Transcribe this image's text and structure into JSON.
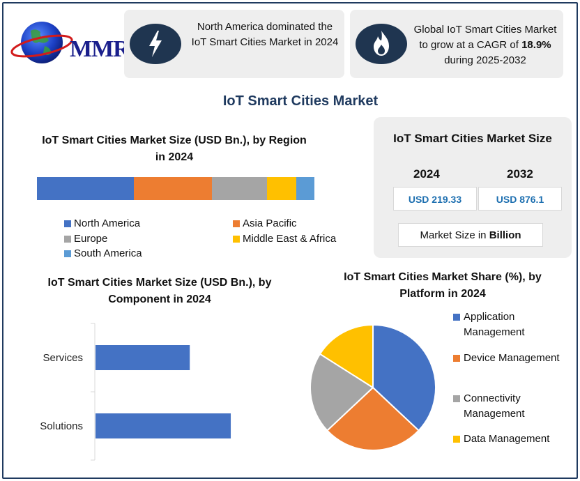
{
  "logo": {
    "text": "MMR"
  },
  "cards": [
    {
      "icon": "lightning-icon",
      "text": "North America dominated the IoT Smart Cities Market in 2024"
    },
    {
      "icon": "flame-icon",
      "text_pre": "Global IoT Smart Cities Market to grow at a CAGR of",
      "text_bold": "18.9%",
      "text_post": "during 2025-2032"
    }
  ],
  "main_title": "IoT Smart Cities Market",
  "size_box": {
    "title": "IoT Smart Cities Market Size",
    "year1": "2024",
    "year2": "2032",
    "value1": "USD 219.33",
    "value2": "USD 876.1",
    "unit_pre": "Market Size in",
    "unit_bold": "Billion"
  },
  "colors": {
    "blue": "#4472c4",
    "orange": "#ed7d31",
    "gray": "#a5a5a5",
    "yellow": "#ffc000",
    "lightblue": "#5b9bd5",
    "navy": "#1f3a5f"
  },
  "chart_data": [
    {
      "type": "bar",
      "orientation": "stacked-horizontal",
      "title": "IoT Smart Cities Market Size (USD Bn.), by Region in 2024",
      "series": [
        {
          "name": "North America",
          "value": 35
        },
        {
          "name": "Asia Pacific",
          "value": 28
        },
        {
          "name": "Europe",
          "value": 20
        },
        {
          "name": "Middle East & Africa",
          "value": 10.5
        },
        {
          "name": "South America",
          "value": 6.5
        }
      ],
      "legend": "bottom"
    },
    {
      "type": "bar",
      "orientation": "horizontal",
      "title": "IoT Smart Cities Market Size (USD Bn.), by Component in 2024",
      "categories": [
        "Services",
        "Solutions"
      ],
      "values": [
        138,
        198
      ],
      "xlim": [
        0,
        300
      ]
    },
    {
      "type": "pie",
      "title": "IoT Smart Cities Market Share (%), by Platform in 2024",
      "categories": [
        "Application Management",
        "Device Management",
        "Connectivity Management",
        "Data Management"
      ],
      "values": [
        37,
        26,
        21,
        16
      ],
      "legend": "right"
    }
  ]
}
